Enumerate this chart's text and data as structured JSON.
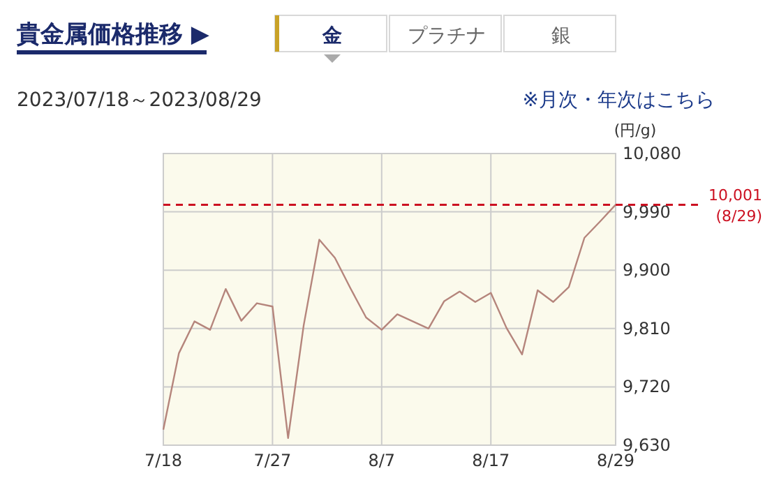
{
  "chart_data": {
    "type": "line",
    "title": "貴金属価格推移 ▶",
    "subtitle": "2023/07/18～2023/08/29",
    "ylabel": "(円/g)",
    "categories": [
      "7/18",
      null,
      null,
      null,
      null,
      null,
      null,
      "7/27",
      null,
      null,
      null,
      null,
      null,
      null,
      "8/7",
      null,
      null,
      null,
      null,
      null,
      null,
      "8/17",
      null,
      null,
      null,
      null,
      null,
      null,
      null,
      "8/29"
    ],
    "series": [
      {
        "color": "#b5857c",
        "values": [
          9654,
          9772,
          9821,
          9808,
          9871,
          9822,
          9849,
          9844,
          9641,
          9815,
          9947,
          9919,
          9872,
          9827,
          9808,
          9832,
          9821,
          9810,
          9852,
          9867,
          9851,
          9865,
          9811,
          9770,
          9869,
          9851,
          9874,
          9950,
          9975,
          10001
        ]
      }
    ],
    "ylim": [
      9630,
      10080
    ],
    "yticks": [
      {
        "value": 9630,
        "label": "9,630"
      },
      {
        "value": 9720,
        "label": "9,720"
      },
      {
        "value": 9810,
        "label": "9,810"
      },
      {
        "value": 9900,
        "label": "9,900"
      },
      {
        "value": 9990,
        "label": "9,990"
      },
      {
        "value": 10080,
        "label": "10,080"
      }
    ],
    "grid": true,
    "ref_lines": [
      {
        "axis": "y",
        "value": 10001,
        "label": "10,001",
        "color": "#cc1122",
        "line_style": "dashed"
      }
    ],
    "annotations": [
      "金",
      "プラチナ",
      "銀",
      "※月次・年次はこちら",
      "(8/29)"
    ]
  }
}
